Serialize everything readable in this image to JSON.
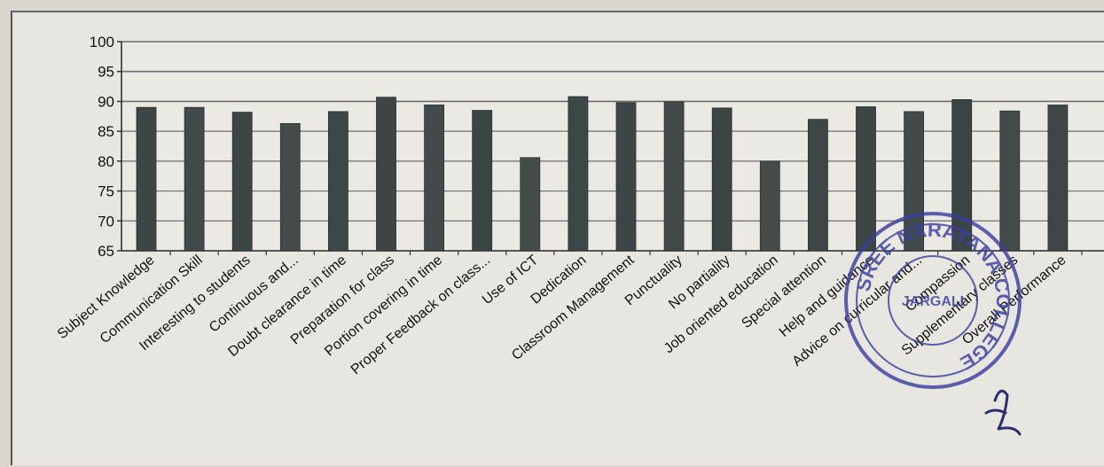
{
  "chart_data": {
    "type": "bar",
    "title": "",
    "xlabel": "",
    "ylabel": "",
    "ylim": [
      65,
      100
    ],
    "yticks": [
      65,
      70,
      75,
      80,
      85,
      90,
      95,
      100
    ],
    "grid": true,
    "categories": [
      "Subject Knowledge",
      "Communication Skill",
      "Interesting to students",
      "Continuous and...",
      "Doubt clearance in time",
      "Preparation for class",
      "Portion covering in time",
      "Proper Feedback on class...",
      "Use of ICT",
      "Dedication",
      "Classroom Management",
      "Punctuality",
      "No partiality",
      "Job oriented education",
      "Special attention",
      "Help and guidance",
      "Advice on curricular and...",
      "Compassion",
      "Supplementary classes",
      "Overall Performance"
    ],
    "values": [
      89,
      89,
      88.2,
      86.3,
      88.3,
      90.7,
      89.4,
      88.5,
      80.6,
      90.8,
      89.8,
      89.9,
      88.9,
      80,
      87,
      89.1,
      88.3,
      90.3,
      88.4,
      89.4
    ],
    "bar_color": "#3f4a48"
  },
  "stamp": {
    "text": "SREE NARAYANA COLLEGE",
    "inner_text": "JARGALI",
    "color": "#3a3fa0"
  }
}
